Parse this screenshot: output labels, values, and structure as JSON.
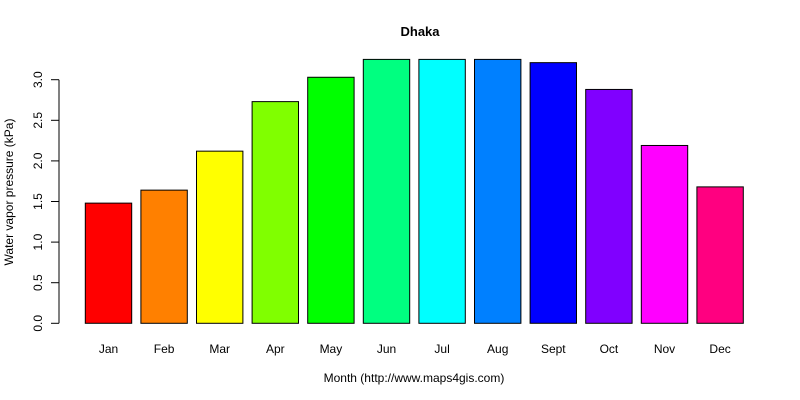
{
  "chart_data": {
    "type": "bar",
    "title": "Dhaka",
    "xlabel": "Month (http://www.maps4gis.com)",
    "ylabel": "Water vapor pressure (kPa)",
    "categories": [
      "Jan",
      "Feb",
      "Mar",
      "Apr",
      "May",
      "Jun",
      "Jul",
      "Aug",
      "Sept",
      "Oct",
      "Nov",
      "Dec"
    ],
    "values": [
      1.48,
      1.64,
      2.12,
      2.73,
      3.03,
      3.25,
      3.25,
      3.25,
      3.21,
      2.88,
      2.19,
      1.68
    ],
    "colors": [
      "#FF0000",
      "#FF8000",
      "#FFFF00",
      "#80FF00",
      "#00FF00",
      "#00FF80",
      "#00FFFF",
      "#0080FF",
      "#0000FF",
      "#8000FF",
      "#FF00FF",
      "#FF0080"
    ],
    "yticks": [
      "0.0",
      "0.5",
      "1.0",
      "1.5",
      "2.0",
      "2.5",
      "3.0"
    ],
    "ytick_values": [
      0,
      0.5,
      1.0,
      1.5,
      2.0,
      2.5,
      3.0
    ],
    "ylim": [
      0,
      3.0
    ],
    "grid": false,
    "legend": null
  }
}
